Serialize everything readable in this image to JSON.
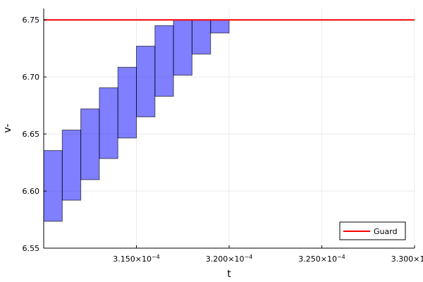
{
  "chart_data": {
    "type": "bar",
    "xlabel": "t",
    "ylabel": "v-",
    "xlim": [
      0.00031,
      0.00033
    ],
    "ylim": [
      6.55,
      6.76
    ],
    "x_ticks": [
      {
        "value": 0.000315,
        "mantissa": "3.150",
        "base": "×10",
        "exp": "−4"
      },
      {
        "value": 0.00032,
        "mantissa": "3.200",
        "base": "×10",
        "exp": "−4"
      },
      {
        "value": 0.000325,
        "mantissa": "3.250",
        "base": "×10",
        "exp": "−4"
      },
      {
        "value": 0.00033,
        "mantissa": "3.300",
        "base": "×10",
        "exp": "−4"
      }
    ],
    "y_ticks": [
      {
        "value": 6.55,
        "label": "6.55"
      },
      {
        "value": 6.6,
        "label": "6.60"
      },
      {
        "value": 6.65,
        "label": "6.65"
      },
      {
        "value": 6.7,
        "label": "6.70"
      },
      {
        "value": 6.75,
        "label": "6.75"
      }
    ],
    "grid": true,
    "boxes": [
      {
        "t0": 0.00031,
        "t1": 0.000311,
        "v_lo": 6.5735,
        "v_hi": 6.6355
      },
      {
        "t0": 0.000311,
        "t1": 0.000312,
        "v_lo": 6.592,
        "v_hi": 6.6535
      },
      {
        "t0": 0.000312,
        "t1": 0.000313,
        "v_lo": 6.61,
        "v_hi": 6.672
      },
      {
        "t0": 0.000313,
        "t1": 0.000314,
        "v_lo": 6.6285,
        "v_hi": 6.6905
      },
      {
        "t0": 0.000314,
        "t1": 0.000315,
        "v_lo": 6.6465,
        "v_hi": 6.7085
      },
      {
        "t0": 0.000315,
        "t1": 0.000316,
        "v_lo": 6.665,
        "v_hi": 6.727
      },
      {
        "t0": 0.000316,
        "t1": 0.000317,
        "v_lo": 6.683,
        "v_hi": 6.745
      },
      {
        "t0": 0.000317,
        "t1": 0.000318,
        "v_lo": 6.7015,
        "v_hi": 6.75
      },
      {
        "t0": 0.000318,
        "t1": 0.000319,
        "v_lo": 6.72,
        "v_hi": 6.75
      },
      {
        "t0": 0.000319,
        "t1": 0.00032,
        "v_lo": 6.7385,
        "v_hi": 6.75
      }
    ],
    "box_color": "#0000ff",
    "guard": {
      "name": "Guard",
      "value": 6.75,
      "color": "#ff0000"
    },
    "legend_position": "bottom-right"
  }
}
